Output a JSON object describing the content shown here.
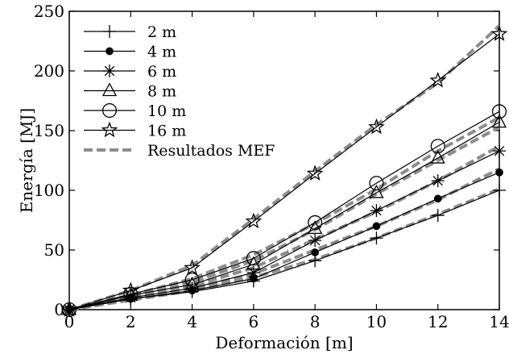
{
  "chart_data": {
    "type": "line",
    "title": "",
    "xlabel": "Deformación [m]",
    "ylabel": "Energía [MJ]",
    "xlim": [
      0,
      14
    ],
    "ylim": [
      0,
      250
    ],
    "x_ticks": [
      0,
      2,
      4,
      6,
      8,
      10,
      12,
      14
    ],
    "y_ticks": [
      0,
      50,
      100,
      150,
      200,
      250
    ],
    "grid": false,
    "legend_position": "top-left",
    "x": [
      0,
      2,
      4,
      6,
      8,
      10,
      12,
      14
    ],
    "series": [
      {
        "name": "2 m",
        "marker": "plus",
        "color": "#000000",
        "values": [
          0,
          9,
          15,
          24,
          41,
          60,
          79,
          100
        ]
      },
      {
        "name": "4 m",
        "marker": "filled-circle",
        "color": "#000000",
        "values": [
          0,
          9,
          16,
          26,
          48,
          70,
          93,
          115
        ]
      },
      {
        "name": "6 m",
        "marker": "asterisk",
        "color": "#000000",
        "values": [
          0,
          10,
          18,
          31,
          58,
          83,
          108,
          133
        ]
      },
      {
        "name": "8 m",
        "marker": "triangle",
        "color": "#000000",
        "values": [
          0,
          12,
          21,
          38,
          68,
          98,
          127,
          157
        ]
      },
      {
        "name": "10 m",
        "marker": "open-circle",
        "color": "#000000",
        "values": [
          0,
          13,
          25,
          43,
          73,
          106,
          137,
          166
        ]
      },
      {
        "name": "16 m",
        "marker": "star",
        "color": "#000000",
        "values": [
          0,
          16,
          35,
          74,
          114,
          153,
          192,
          231
        ]
      }
    ],
    "reference_series": {
      "name": "Resultados MEF",
      "style": "dashed",
      "color": "#8c8c8c",
      "curves": [
        [
          0,
          8,
          16,
          27,
          42,
          60,
          80,
          101
        ],
        [
          0,
          9,
          18,
          30,
          50,
          70,
          92,
          118
        ],
        [
          0,
          10,
          20,
          35,
          59,
          82,
          108,
          137
        ],
        [
          0,
          11,
          23,
          41,
          67,
          97,
          125,
          153
        ],
        [
          0,
          12,
          26,
          46,
          72,
          101,
          133,
          161
        ],
        [
          0,
          16,
          37,
          76,
          116,
          155,
          190,
          238
        ]
      ]
    }
  }
}
